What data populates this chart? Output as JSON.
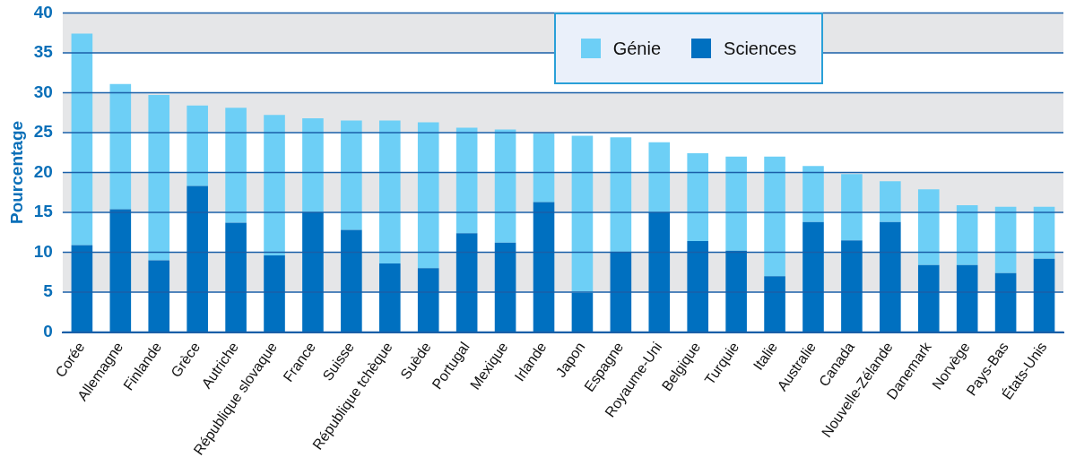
{
  "chart_data": {
    "type": "bar",
    "stacked": true,
    "ylabel": "Pourcentage",
    "categories": [
      "Corée",
      "Allemagne",
      "Finlande",
      "Grèce",
      "Autriche",
      "République slovaque",
      "France",
      "Suisse",
      "République tchèque",
      "Suède",
      "Portugal",
      "Mexique",
      "Irlande",
      "Japon",
      "Espagne",
      "Royaume-Uni",
      "Belgique",
      "Turquie",
      "Italie",
      "Australie",
      "Canada",
      "Nouvelle-Zélande",
      "Danemark",
      "Norvège",
      "Pays-Bas",
      "États-Unis"
    ],
    "series": [
      {
        "name": "Sciences",
        "color": "#0070c0",
        "values": [
          10.9,
          15.4,
          9.0,
          18.3,
          13.7,
          9.6,
          15.0,
          12.8,
          8.6,
          8.0,
          12.4,
          11.2,
          16.3,
          4.9,
          10.0,
          15.0,
          11.4,
          10.2,
          7.0,
          13.8,
          11.5,
          13.8,
          8.4,
          8.4,
          7.4,
          9.2
        ]
      },
      {
        "name": "Génie",
        "color": "#6dcff6",
        "values": [
          26.5,
          15.7,
          20.7,
          10.1,
          14.4,
          17.6,
          11.8,
          13.7,
          17.9,
          18.3,
          13.2,
          14.2,
          8.6,
          19.7,
          14.4,
          8.8,
          11.0,
          11.8,
          15.0,
          7.0,
          8.3,
          5.1,
          9.5,
          7.5,
          8.3,
          6.5
        ]
      }
    ],
    "ylim": [
      0,
      40
    ],
    "yticks": [
      0,
      5,
      10,
      15,
      20,
      25,
      30,
      35,
      40
    ],
    "grid": "y",
    "legend": "top"
  }
}
